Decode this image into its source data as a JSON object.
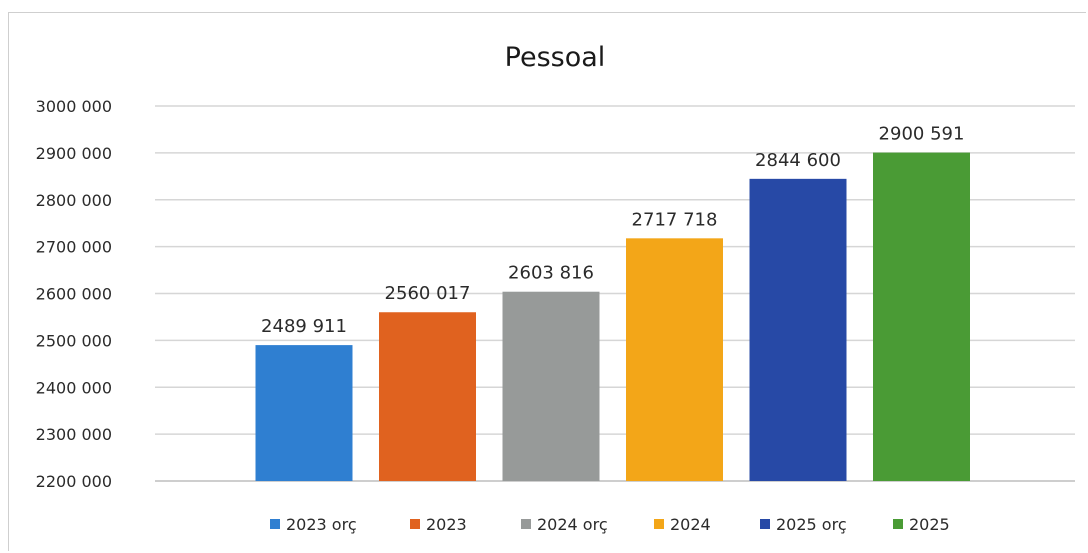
{
  "chart_data": {
    "type": "bar",
    "title": "Pessoal",
    "xlabel": "",
    "ylabel": "",
    "ylim": [
      2200000,
      3000000
    ],
    "yticks": [
      2200000,
      2300000,
      2400000,
      2500000,
      2600000,
      2700000,
      2800000,
      2900000,
      3000000
    ],
    "ytick_labels": [
      "2200 000",
      "2300 000",
      "2400 000",
      "2500 000",
      "2600 000",
      "2700 000",
      "2800 000",
      "2900 000",
      "3000 000"
    ],
    "grid": true,
    "legend_position": "bottom",
    "series": [
      {
        "name": "2023 orç",
        "value": 2489911,
        "label": "2489 911",
        "color": "#2f7fd1"
      },
      {
        "name": "2023",
        "value": 2560017,
        "label": "2560 017",
        "color": "#e0621f"
      },
      {
        "name": "2024 orç",
        "value": 2603816,
        "label": "2603 816",
        "color": "#979a99"
      },
      {
        "name": "2024",
        "value": 2717718,
        "label": "2717 718",
        "color": "#f3a618"
      },
      {
        "name": "2025 orç",
        "value": 2844600,
        "label": "2844 600",
        "color": "#2749a6"
      },
      {
        "name": "2025",
        "value": 2900591,
        "label": "2900 591",
        "color": "#4a9b35"
      }
    ]
  }
}
